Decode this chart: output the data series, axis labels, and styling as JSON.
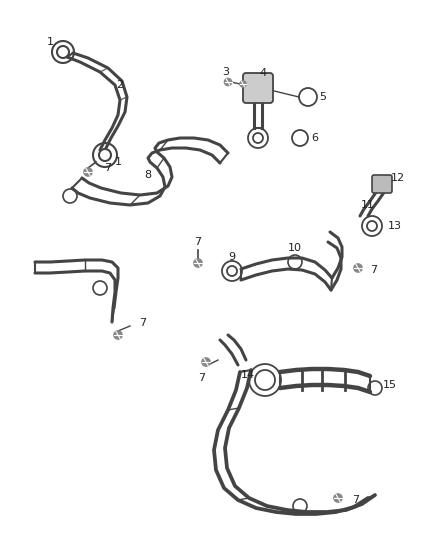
{
  "background_color": "#ffffff",
  "line_color": "#444444",
  "label_color": "#222222",
  "figsize": [
    4.38,
    5.33
  ],
  "dpi": 100
}
